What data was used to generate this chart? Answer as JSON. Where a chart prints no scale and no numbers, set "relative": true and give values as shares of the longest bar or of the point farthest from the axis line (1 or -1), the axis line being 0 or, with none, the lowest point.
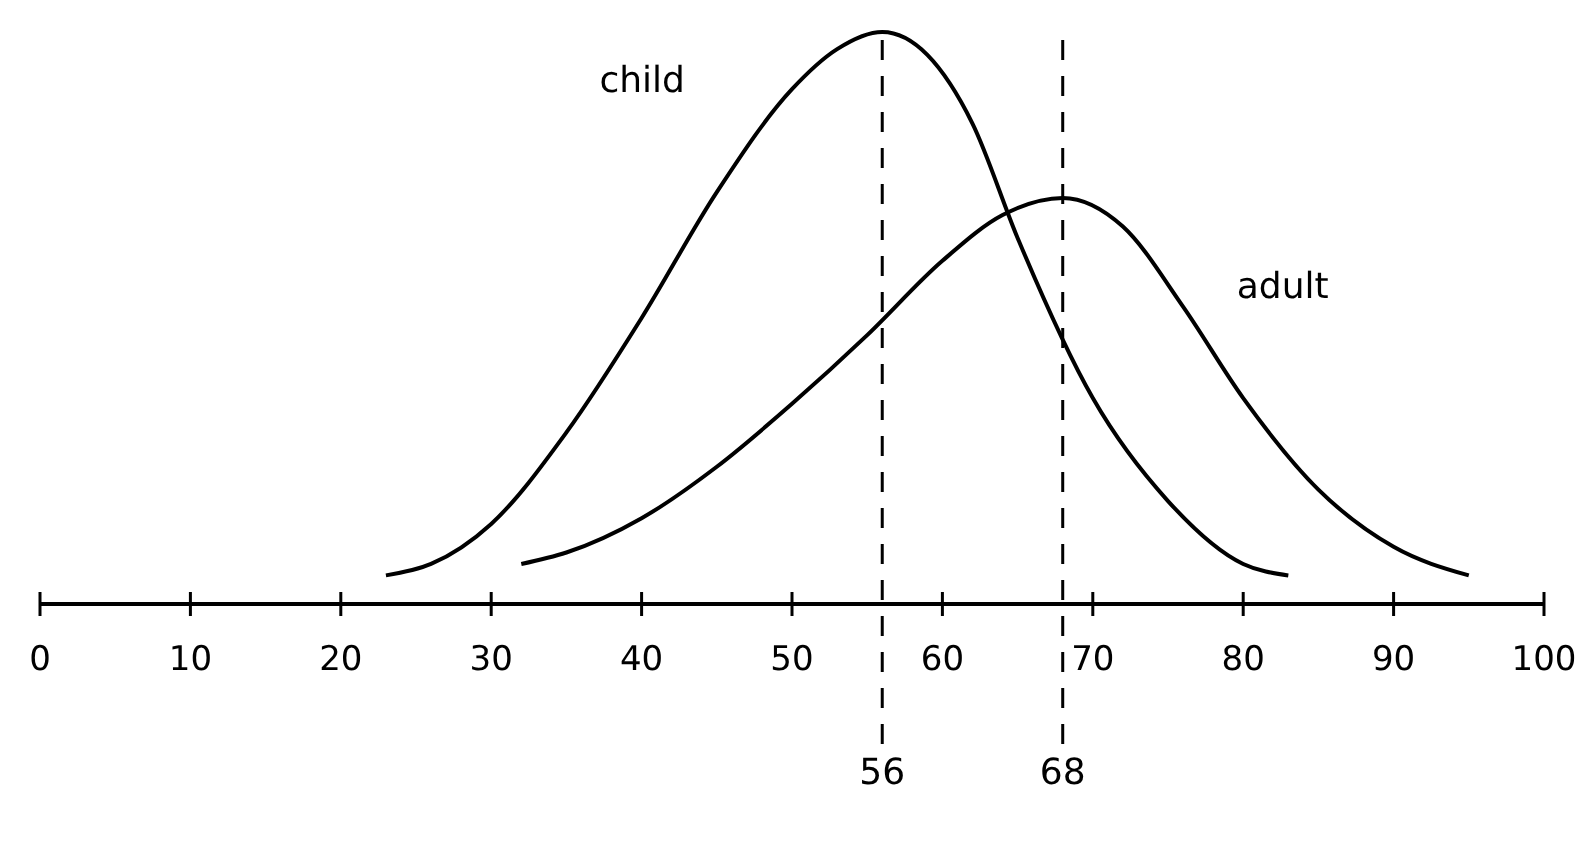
{
  "chart_data": {
    "type": "line",
    "relative": true,
    "xlim": [
      0,
      100
    ],
    "xticks": [
      0,
      10,
      20,
      30,
      40,
      50,
      60,
      70,
      80,
      90,
      100
    ],
    "series": [
      {
        "name": "child",
        "color": "#000000",
        "x": [
          23,
          26,
          30,
          35,
          40,
          45,
          50,
          53,
          56,
          59,
          62,
          65,
          70,
          75,
          80,
          83
        ],
        "values": [
          0.05,
          0.07,
          0.14,
          0.3,
          0.5,
          0.72,
          0.9,
          0.97,
          1,
          0.96,
          0.84,
          0.64,
          0.36,
          0.18,
          0.07,
          0.05
        ]
      },
      {
        "name": "adult",
        "color": "#000000",
        "x": [
          32,
          35,
          40,
          45,
          50,
          55,
          60,
          64,
          68,
          72,
          76,
          80,
          85,
          90,
          95
        ],
        "values": [
          0.07,
          0.09,
          0.15,
          0.24,
          0.35,
          0.47,
          0.6,
          0.68,
          0.71,
          0.66,
          0.52,
          0.36,
          0.2,
          0.1,
          0.05
        ]
      }
    ],
    "ref_lines": [
      {
        "axis": "x",
        "value": 56,
        "label": "56",
        "line_style": "dashed"
      },
      {
        "axis": "x",
        "value": 68,
        "label": "68",
        "line_style": "dashed"
      }
    ]
  }
}
